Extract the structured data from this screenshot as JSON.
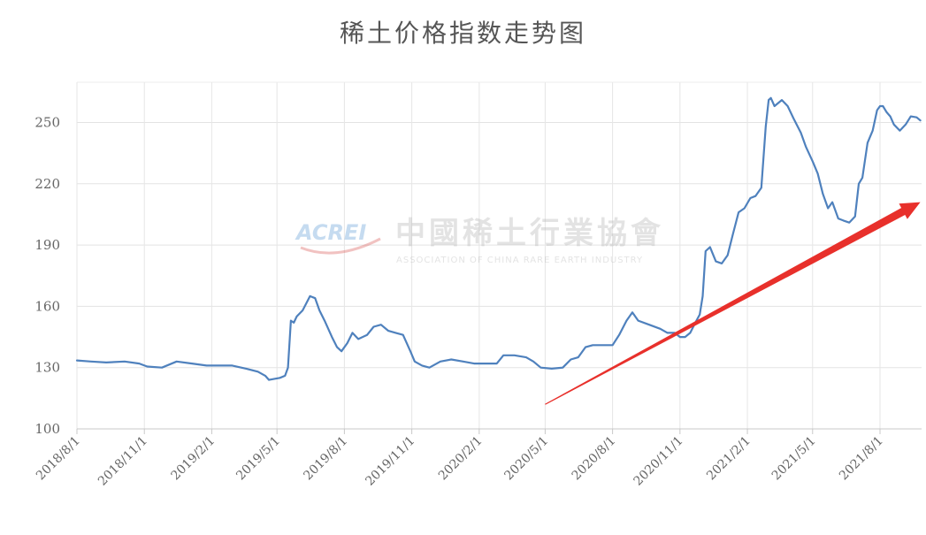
{
  "chart_data": {
    "type": "line",
    "title": "稀土价格指数走势图",
    "xlabel": "",
    "ylabel": "",
    "ylim": [
      100,
      270
    ],
    "yticks": [
      100,
      130,
      160,
      190,
      220,
      250
    ],
    "grid": true,
    "x_tick_labels": [
      "2018/8/1",
      "2018/11/1",
      "2019/2/1",
      "2019/5/1",
      "2019/8/1",
      "2019/11/1",
      "2020/2/1",
      "2020/5/1",
      "2020/8/1",
      "2020/11/1",
      "2021/2/1",
      "2021/5/1",
      "2021/8/1"
    ],
    "series": [
      {
        "color": "#4f81bd",
        "x": [
          "2018-08-01",
          "2018-08-20",
          "2018-09-10",
          "2018-10-05",
          "2018-10-25",
          "2018-11-05",
          "2018-11-25",
          "2018-12-15",
          "2019-01-05",
          "2019-01-25",
          "2019-02-10",
          "2019-03-01",
          "2019-03-20",
          "2019-04-05",
          "2019-04-15",
          "2019-04-20",
          "2019-05-05",
          "2019-05-12",
          "2019-05-16",
          "2019-05-20",
          "2019-05-24",
          "2019-05-28",
          "2019-06-05",
          "2019-06-15",
          "2019-06-22",
          "2019-06-28",
          "2019-07-05",
          "2019-07-15",
          "2019-07-22",
          "2019-07-28",
          "2019-08-05",
          "2019-08-12",
          "2019-08-20",
          "2019-09-01",
          "2019-09-10",
          "2019-09-20",
          "2019-09-30",
          "2019-10-10",
          "2019-10-20",
          "2019-10-30",
          "2019-11-05",
          "2019-11-15",
          "2019-11-25",
          "2019-12-10",
          "2019-12-25",
          "2020-01-10",
          "2020-01-25",
          "2020-02-10",
          "2020-02-25",
          "2020-03-05",
          "2020-03-20",
          "2020-04-05",
          "2020-04-15",
          "2020-04-25",
          "2020-05-10",
          "2020-05-25",
          "2020-06-05",
          "2020-06-15",
          "2020-06-25",
          "2020-07-05",
          "2020-07-20",
          "2020-08-01",
          "2020-08-10",
          "2020-08-20",
          "2020-08-28",
          "2020-09-05",
          "2020-09-20",
          "2020-10-05",
          "2020-10-15",
          "2020-10-25",
          "2020-11-01",
          "2020-11-08",
          "2020-11-15",
          "2020-11-22",
          "2020-11-28",
          "2020-12-02",
          "2020-12-06",
          "2020-12-12",
          "2020-12-20",
          "2020-12-28",
          "2021-01-05",
          "2021-01-12",
          "2021-01-20",
          "2021-01-28",
          "2021-02-05",
          "2021-02-12",
          "2021-02-20",
          "2021-02-26",
          "2021-03-02",
          "2021-03-05",
          "2021-03-10",
          "2021-03-20",
          "2021-03-28",
          "2021-04-05",
          "2021-04-15",
          "2021-04-22",
          "2021-05-01",
          "2021-05-08",
          "2021-05-15",
          "2021-05-22",
          "2021-05-28",
          "2021-06-05",
          "2021-06-12",
          "2021-06-20",
          "2021-06-28",
          "2021-07-03",
          "2021-07-08",
          "2021-07-15",
          "2021-07-22",
          "2021-07-28",
          "2021-08-01",
          "2021-08-05",
          "2021-08-10",
          "2021-08-15",
          "2021-08-20",
          "2021-08-28",
          "2021-09-05",
          "2021-09-12",
          "2021-09-20",
          "2021-09-25"
        ],
        "values": [
          133.5,
          133,
          132.5,
          133,
          132,
          130.5,
          130,
          133,
          132,
          131,
          131,
          131,
          129.5,
          128,
          126,
          124,
          125,
          126,
          130,
          153,
          152,
          155,
          158,
          165,
          164,
          158,
          153,
          145,
          140,
          138,
          142,
          147,
          144,
          146,
          150,
          151,
          148,
          147,
          146,
          138,
          133,
          131,
          130,
          133,
          134,
          133,
          132,
          132,
          132,
          136,
          136,
          135,
          133,
          130,
          129.5,
          130,
          134,
          135,
          140,
          141,
          141,
          141,
          146,
          153,
          157,
          153,
          151,
          149,
          147,
          147,
          145,
          145,
          147,
          152,
          156,
          165,
          187,
          189,
          182,
          181,
          185,
          195,
          206,
          208,
          213,
          214,
          218,
          248,
          261,
          262,
          258,
          261,
          258,
          252,
          245,
          238,
          231,
          225,
          215,
          208,
          211,
          203,
          202,
          201,
          204,
          220,
          223,
          240,
          246,
          256,
          258,
          258,
          255,
          253,
          249,
          246,
          249,
          253,
          252.5,
          251
        ]
      }
    ],
    "annotations": {
      "trend_arrow": {
        "from": [
          "2020-05-01",
          112
        ],
        "to": [
          "2021-09-25",
          211
        ],
        "color": "#e8302b"
      }
    },
    "watermark": {
      "logo_text": "ACREI",
      "cn_text": "中國稀土行業協會",
      "en_text": "ASSOCIATION OF CHINA RARE EARTH INDUSTRY"
    }
  }
}
